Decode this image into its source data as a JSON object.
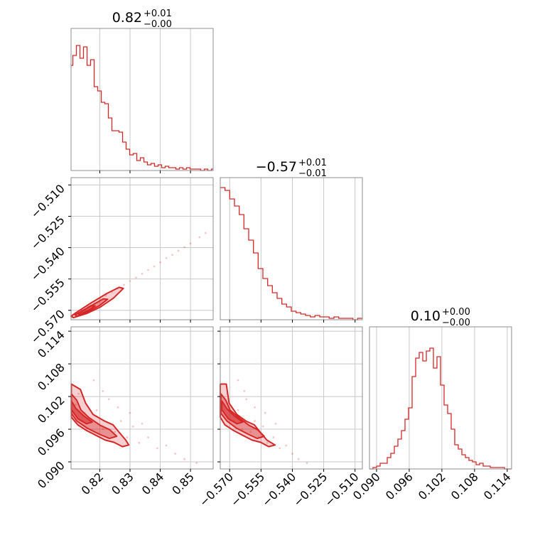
{
  "chart_data": {
    "type": "corner",
    "color": "#d62728",
    "parameters": [
      {
        "index": 0,
        "range": [
          0.8105,
          0.8575
        ],
        "ticks": [
          0.82,
          0.83,
          0.84,
          0.85
        ],
        "tick_labels": [
          "0.82",
          "0.83",
          "0.84",
          "0.85"
        ],
        "title": {
          "value": "0.82",
          "plus": "+0.01",
          "minus": "−0.00"
        }
      },
      {
        "index": 1,
        "range": [
          -0.5745,
          -0.5065
        ],
        "ticks": [
          -0.57,
          -0.555,
          -0.54,
          -0.525,
          -0.51
        ],
        "tick_labels": [
          "−0.570",
          "−0.555",
          "−0.540",
          "−0.525",
          "−0.510"
        ],
        "title": {
          "value": "−0.57",
          "plus": "+0.01",
          "minus": "−0.01"
        }
      },
      {
        "index": 2,
        "range": [
          0.0887,
          0.1148
        ],
        "ticks": [
          0.09,
          0.096,
          0.102,
          0.108,
          0.114
        ],
        "tick_labels": [
          "0.090",
          "0.096",
          "0.102",
          "0.108",
          "0.114"
        ],
        "title": {
          "value": "0.10",
          "plus": "+0.00",
          "minus": "−0.00"
        }
      }
    ],
    "histograms": [
      {
        "param": 0,
        "values": [
          0.74,
          0.81,
          0.81,
          0.88,
          0.88,
          0.79,
          0.79,
          0.87,
          0.87,
          0.74,
          0.74,
          0.78,
          0.78,
          0.59,
          0.59,
          0.56,
          0.56,
          0.48,
          0.48,
          0.47,
          0.47,
          0.37,
          0.37,
          0.28,
          0.28,
          0.28,
          0.28,
          0.27,
          0.27,
          0.2,
          0.2,
          0.15,
          0.15,
          0.11,
          0.11,
          0.12,
          0.12,
          0.07,
          0.07,
          0.09,
          0.09,
          0.06,
          0.06,
          0.04,
          0.04,
          0.05,
          0.05,
          0.03,
          0.03,
          0.04,
          0.04,
          0.02,
          0.02,
          0.03,
          0.03,
          0.02,
          0.02,
          0.02,
          0.02,
          0.01,
          0.01,
          0.02,
          0.02,
          0.01,
          0.01,
          0.02,
          0.02,
          0.01,
          0.01,
          0.01,
          0.01,
          0.01,
          0.01,
          0.0,
          0.0,
          0.01,
          0.01,
          0.0,
          0.0,
          0.01
        ]
      },
      {
        "param": 1,
        "values": [
          0.93,
          0.93,
          0.91,
          0.91,
          0.85,
          0.85,
          0.8,
          0.8,
          0.74,
          0.74,
          0.64,
          0.64,
          0.56,
          0.56,
          0.47,
          0.47,
          0.36,
          0.36,
          0.29,
          0.29,
          0.24,
          0.24,
          0.19,
          0.19,
          0.15,
          0.15,
          0.11,
          0.11,
          0.09,
          0.09,
          0.06,
          0.06,
          0.05,
          0.05,
          0.04,
          0.04,
          0.03,
          0.03,
          0.02,
          0.02,
          0.03,
          0.03,
          0.02,
          0.02,
          0.02,
          0.02,
          0.01,
          0.01,
          0.02,
          0.02,
          0.01,
          0.01,
          0.01,
          0.01,
          0.01,
          0.01,
          0.0,
          0.0,
          0.01,
          0.01
        ]
      },
      {
        "param": 2,
        "values": [
          0.0,
          0.01,
          0.02,
          0.04,
          0.04,
          0.08,
          0.11,
          0.16,
          0.21,
          0.27,
          0.35,
          0.43,
          0.65,
          0.78,
          0.82,
          0.76,
          0.83,
          0.85,
          0.71,
          0.79,
          0.59,
          0.45,
          0.39,
          0.28,
          0.17,
          0.14,
          0.1,
          0.08,
          0.06,
          0.05,
          0.03,
          0.04,
          0.02,
          0.02,
          0.01,
          0.01,
          0.01,
          0.01,
          0.0,
          0.0
        ]
      }
    ],
    "scatter": [
      {
        "x_param": 0,
        "y_param": 1,
        "points": [
          [
            0.812,
            -0.5715
          ],
          [
            0.814,
            -0.57
          ],
          [
            0.816,
            -0.568
          ],
          [
            0.818,
            -0.566
          ],
          [
            0.82,
            -0.5645
          ],
          [
            0.822,
            -0.563
          ],
          [
            0.824,
            -0.5612
          ],
          [
            0.826,
            -0.5595
          ],
          [
            0.828,
            -0.5578
          ],
          [
            0.83,
            -0.556
          ],
          [
            0.832,
            -0.5543
          ],
          [
            0.834,
            -0.5525
          ],
          [
            0.836,
            -0.5507
          ],
          [
            0.838,
            -0.549
          ],
          [
            0.84,
            -0.547
          ],
          [
            0.842,
            -0.545
          ],
          [
            0.844,
            -0.5435
          ],
          [
            0.846,
            -0.5415
          ],
          [
            0.848,
            -0.5397
          ],
          [
            0.85,
            -0.538
          ],
          [
            0.853,
            -0.535
          ],
          [
            0.855,
            -0.533
          ]
        ]
      },
      {
        "x_param": 0,
        "y_param": 2,
        "points": [
          [
            0.812,
            0.1005
          ],
          [
            0.813,
            0.1025
          ],
          [
            0.815,
            0.099
          ],
          [
            0.817,
            0.0975
          ],
          [
            0.819,
            0.0995
          ],
          [
            0.821,
            0.096
          ],
          [
            0.823,
            0.1015
          ],
          [
            0.825,
            0.0955
          ],
          [
            0.827,
            0.0975
          ],
          [
            0.829,
            0.0945
          ],
          [
            0.831,
            0.0965
          ],
          [
            0.833,
            0.0935
          ],
          [
            0.836,
            0.0945
          ],
          [
            0.839,
            0.0925
          ],
          [
            0.842,
            0.093
          ],
          [
            0.845,
            0.0915
          ],
          [
            0.848,
            0.0905
          ],
          [
            0.852,
            0.0898
          ],
          [
            0.818,
            0.105
          ],
          [
            0.821,
            0.103
          ],
          [
            0.826,
            0.1
          ],
          [
            0.83,
            0.099
          ],
          [
            0.834,
            0.097
          ]
        ]
      },
      {
        "x_param": 1,
        "y_param": 2,
        "points": [
          [
            -0.5725,
            0.1005
          ],
          [
            -0.571,
            0.1025
          ],
          [
            -0.5695,
            0.099
          ],
          [
            -0.568,
            0.0975
          ],
          [
            -0.566,
            0.0995
          ],
          [
            -0.564,
            0.096
          ],
          [
            -0.562,
            0.1015
          ],
          [
            -0.56,
            0.0955
          ],
          [
            -0.558,
            0.0975
          ],
          [
            -0.556,
            0.0945
          ],
          [
            -0.554,
            0.0965
          ],
          [
            -0.552,
            0.0935
          ],
          [
            -0.549,
            0.0945
          ],
          [
            -0.546,
            0.0925
          ],
          [
            -0.543,
            0.093
          ],
          [
            -0.54,
            0.0915
          ],
          [
            -0.537,
            0.0905
          ],
          [
            -0.533,
            0.0898
          ],
          [
            -0.566,
            0.105
          ],
          [
            -0.563,
            0.103
          ],
          [
            -0.558,
            0.1
          ],
          [
            -0.553,
            0.099
          ],
          [
            -0.548,
            0.097
          ]
        ]
      }
    ],
    "contours": [
      {
        "x_param": 0,
        "y_param": 1,
        "levels": [
          [
            [
              0.8113,
              -0.5735
            ],
            [
              0.8157,
              -0.5715
            ],
            [
              0.8202,
              -0.5684
            ],
            [
              0.8245,
              -0.5642
            ],
            [
              0.8278,
              -0.5595
            ],
            [
              0.8264,
              -0.559
            ],
            [
              0.8225,
              -0.5618
            ],
            [
              0.8175,
              -0.5661
            ],
            [
              0.8128,
              -0.5705
            ],
            [
              0.8105,
              -0.5728
            ]
          ],
          [
            [
              0.8125,
              -0.5728
            ],
            [
              0.8163,
              -0.5705
            ],
            [
              0.8198,
              -0.5678
            ],
            [
              0.8226,
              -0.5647
            ],
            [
              0.8212,
              -0.5645
            ],
            [
              0.8179,
              -0.5672
            ],
            [
              0.8141,
              -0.5703
            ],
            [
              0.8118,
              -0.5722
            ]
          ],
          [
            [
              0.8132,
              -0.572
            ],
            [
              0.8164,
              -0.5699
            ],
            [
              0.8185,
              -0.5679
            ],
            [
              0.817,
              -0.5678
            ],
            [
              0.8147,
              -0.5699
            ],
            [
              0.8127,
              -0.5715
            ]
          ]
        ]
      },
      {
        "x_param": 0,
        "y_param": 2,
        "levels": [
          [
            [
              0.8106,
              0.1043
            ],
            [
              0.8136,
              0.1033
            ],
            [
              0.8153,
              0.1008
            ],
            [
              0.8178,
              0.0987
            ],
            [
              0.8216,
              0.0975
            ],
            [
              0.8244,
              0.0968
            ],
            [
              0.8263,
              0.0955
            ],
            [
              0.8286,
              0.094
            ],
            [
              0.8296,
              0.0931
            ],
            [
              0.8275,
              0.0928
            ],
            [
              0.8247,
              0.0936
            ],
            [
              0.8218,
              0.094
            ],
            [
              0.819,
              0.0948
            ],
            [
              0.8155,
              0.0958
            ],
            [
              0.8127,
              0.0968
            ],
            [
              0.8106,
              0.0982
            ]
          ],
          [
            [
              0.8106,
              0.1025
            ],
            [
              0.8124,
              0.1013
            ],
            [
              0.8138,
              0.0995
            ],
            [
              0.8165,
              0.0981
            ],
            [
              0.8202,
              0.0967
            ],
            [
              0.8233,
              0.0959
            ],
            [
              0.8256,
              0.0947
            ],
            [
              0.8232,
              0.0943
            ],
            [
              0.8198,
              0.0951
            ],
            [
              0.8158,
              0.0962
            ],
            [
              0.8124,
              0.0975
            ],
            [
              0.8106,
              0.0989
            ]
          ],
          [
            [
              0.8106,
              0.1012
            ],
            [
              0.8121,
              0.0998
            ],
            [
              0.8146,
              0.0985
            ],
            [
              0.8175,
              0.0973
            ],
            [
              0.8156,
              0.097
            ],
            [
              0.8128,
              0.0979
            ],
            [
              0.8106,
              0.0996
            ]
          ]
        ]
      },
      {
        "x_param": 1,
        "y_param": 2,
        "levels": [
          [
            [
              -0.5745,
              0.1043
            ],
            [
              -0.5716,
              0.1043
            ],
            [
              -0.5703,
              0.1008
            ],
            [
              -0.5665,
              0.0987
            ],
            [
              -0.5622,
              0.0975
            ],
            [
              -0.5582,
              0.0968
            ],
            [
              -0.5555,
              0.0955
            ],
            [
              -0.5522,
              0.094
            ],
            [
              -0.5483,
              0.0931
            ],
            [
              -0.5513,
              0.0928
            ],
            [
              -0.5552,
              0.0936
            ],
            [
              -0.5593,
              0.094
            ],
            [
              -0.5633,
              0.0948
            ],
            [
              -0.5683,
              0.0958
            ],
            [
              -0.5723,
              0.0968
            ],
            [
              -0.5745,
              0.0982
            ]
          ],
          [
            [
              -0.5742,
              0.1025
            ],
            [
              -0.5718,
              0.1013
            ],
            [
              -0.5698,
              0.0995
            ],
            [
              -0.5655,
              0.0981
            ],
            [
              -0.5607,
              0.0967
            ],
            [
              -0.5566,
              0.0959
            ],
            [
              -0.5535,
              0.0947
            ],
            [
              -0.5568,
              0.0943
            ],
            [
              -0.5612,
              0.0951
            ],
            [
              -0.5668,
              0.0962
            ],
            [
              -0.5713,
              0.0975
            ],
            [
              -0.5742,
              0.0989
            ]
          ],
          [
            [
              -0.5738,
              0.1012
            ],
            [
              -0.5714,
              0.0998
            ],
            [
              -0.5679,
              0.0985
            ],
            [
              -0.5638,
              0.0973
            ],
            [
              -0.5665,
              0.097
            ],
            [
              -0.5706,
              0.0979
            ],
            [
              -0.5738,
              0.0996
            ]
          ]
        ]
      }
    ]
  }
}
